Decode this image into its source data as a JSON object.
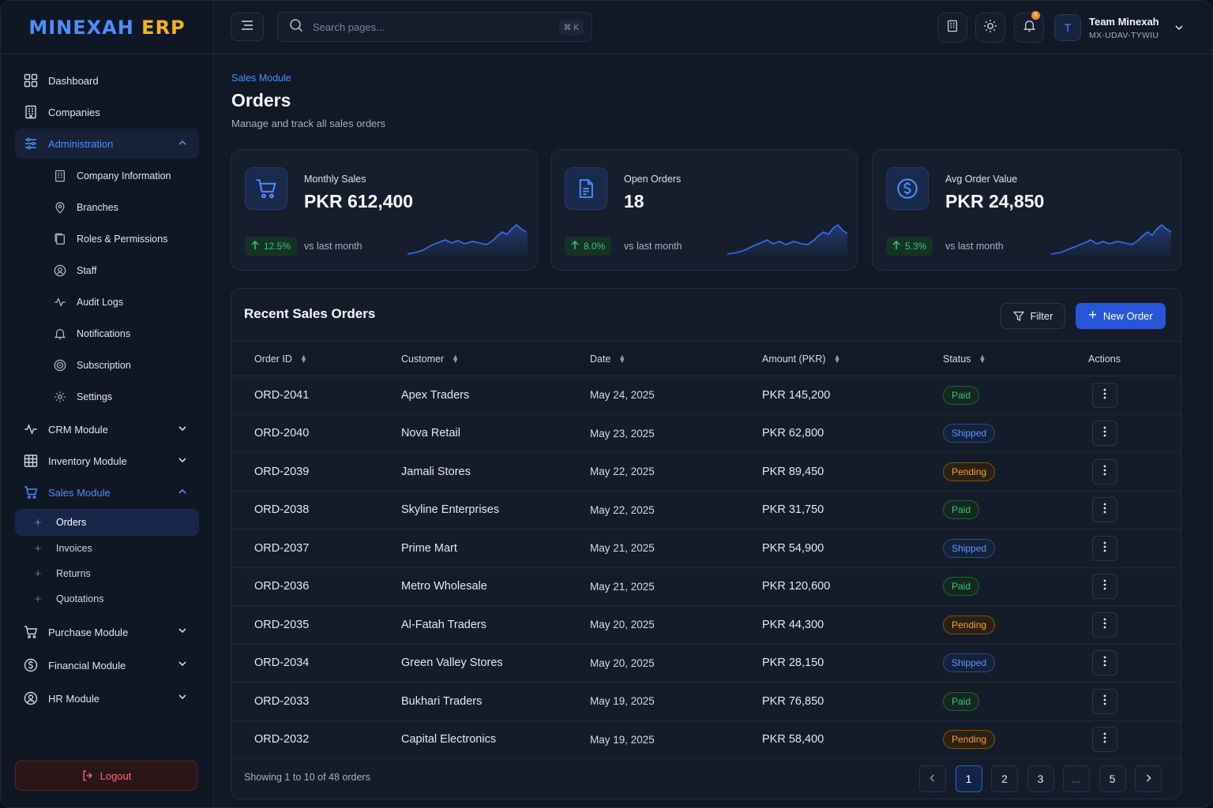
{
  "app": {
    "logo_main": "MINEXAH",
    "logo_suffix": "ERP"
  },
  "sidebar": {
    "items": [
      {
        "label": "Dashboard",
        "icon": "grid-icon"
      },
      {
        "label": "Companies",
        "icon": "building-icon"
      },
      {
        "label": "Administration",
        "icon": "sliders-icon",
        "expanded": true
      }
    ],
    "admin_sub": [
      {
        "label": "Company Information",
        "icon": "building-icon"
      },
      {
        "label": "Branches",
        "icon": "map-pin-icon"
      },
      {
        "label": "Roles & Permissions",
        "icon": "copy-icon"
      },
      {
        "label": "Staff",
        "icon": "user-circle-icon"
      },
      {
        "label": "Audit Logs",
        "icon": "activity-icon"
      },
      {
        "label": "Notifications",
        "icon": "bell-icon"
      },
      {
        "label": "Subscription",
        "icon": "coin-icon"
      },
      {
        "label": "Settings",
        "icon": "gear-icon"
      }
    ],
    "modules": [
      {
        "label": "CRM Module",
        "icon": "activity-icon"
      },
      {
        "label": "Inventory Module",
        "icon": "table-icon"
      },
      {
        "label": "Sales Module",
        "icon": "cart-icon"
      },
      {
        "label": "Purchase Module",
        "icon": "cart-icon"
      },
      {
        "label": "Financial Module",
        "icon": "dollar-icon"
      },
      {
        "label": "HR Module",
        "icon": "user-circle-icon"
      }
    ],
    "sales_sub": [
      "Orders",
      "Invoices",
      "Returns",
      "Quotations"
    ],
    "logout": "Logout"
  },
  "header": {
    "search_placeholder": "Search pages...",
    "shortcut": "⌘ K",
    "notif_count": "0",
    "user_initial": "T",
    "user_name": "Team Minexah",
    "user_code": "MX-UDAV-TYWIU"
  },
  "page": {
    "breadcrumb": "Sales Module",
    "title": "Orders",
    "subtitle": "Manage and track all sales orders"
  },
  "stats": [
    {
      "label": "Monthly Sales",
      "value": "PKR 612,400",
      "delta": "12.5%",
      "vs": "vs last month",
      "icon": "cart-icon"
    },
    {
      "label": "Open Orders",
      "value": "18",
      "delta": "8.0%",
      "vs": "vs last month",
      "icon": "document-icon"
    },
    {
      "label": "Avg Order Value",
      "value": "PKR 24,850",
      "delta": "5.3%",
      "vs": "vs last month",
      "icon": "dollar-icon"
    }
  ],
  "orders": {
    "title": "Recent Sales Orders",
    "filter_label": "Filter",
    "new_label": "New Order",
    "columns": [
      "Order ID",
      "Customer",
      "Date",
      "Amount (PKR)",
      "Status",
      "Actions"
    ],
    "rows": [
      {
        "id": "ORD-2041",
        "customer": "Apex Traders",
        "date": "May 24, 2025",
        "amount": "PKR 145,200",
        "status": "Paid"
      },
      {
        "id": "ORD-2040",
        "customer": "Nova Retail",
        "date": "May 23, 2025",
        "amount": "PKR 62,800",
        "status": "Shipped"
      },
      {
        "id": "ORD-2039",
        "customer": "Jamali Stores",
        "date": "May 22, 2025",
        "amount": "PKR 89,450",
        "status": "Pending"
      },
      {
        "id": "ORD-2038",
        "customer": "Skyline Enterprises",
        "date": "May 22, 2025",
        "amount": "PKR 31,750",
        "status": "Paid"
      },
      {
        "id": "ORD-2037",
        "customer": "Prime Mart",
        "date": "May 21, 2025",
        "amount": "PKR 54,900",
        "status": "Shipped"
      },
      {
        "id": "ORD-2036",
        "customer": "Metro Wholesale",
        "date": "May 21, 2025",
        "amount": "PKR 120,600",
        "status": "Paid"
      },
      {
        "id": "ORD-2035",
        "customer": "Al-Fatah Traders",
        "date": "May 20, 2025",
        "amount": "PKR 44,300",
        "status": "Pending"
      },
      {
        "id": "ORD-2034",
        "customer": "Green Valley Stores",
        "date": "May 20, 2025",
        "amount": "PKR 28,150",
        "status": "Shipped"
      },
      {
        "id": "ORD-2033",
        "customer": "Bukhari Traders",
        "date": "May 19, 2025",
        "amount": "PKR 76,850",
        "status": "Paid"
      },
      {
        "id": "ORD-2032",
        "customer": "Capital Electronics",
        "date": "May 19, 2025",
        "amount": "PKR 58,400",
        "status": "Pending"
      }
    ],
    "footer": "Showing 1 to 10 of 48 orders",
    "pages": [
      "1",
      "2",
      "3",
      "...",
      "5"
    ],
    "current_page": "1"
  },
  "colors": {
    "accent": "#4d8dff",
    "primary_button": "#2757d6",
    "paid": "#35c47b",
    "shipped": "#5a95ff",
    "pending": "#f0a030",
    "logout": "#ff6b6b"
  }
}
